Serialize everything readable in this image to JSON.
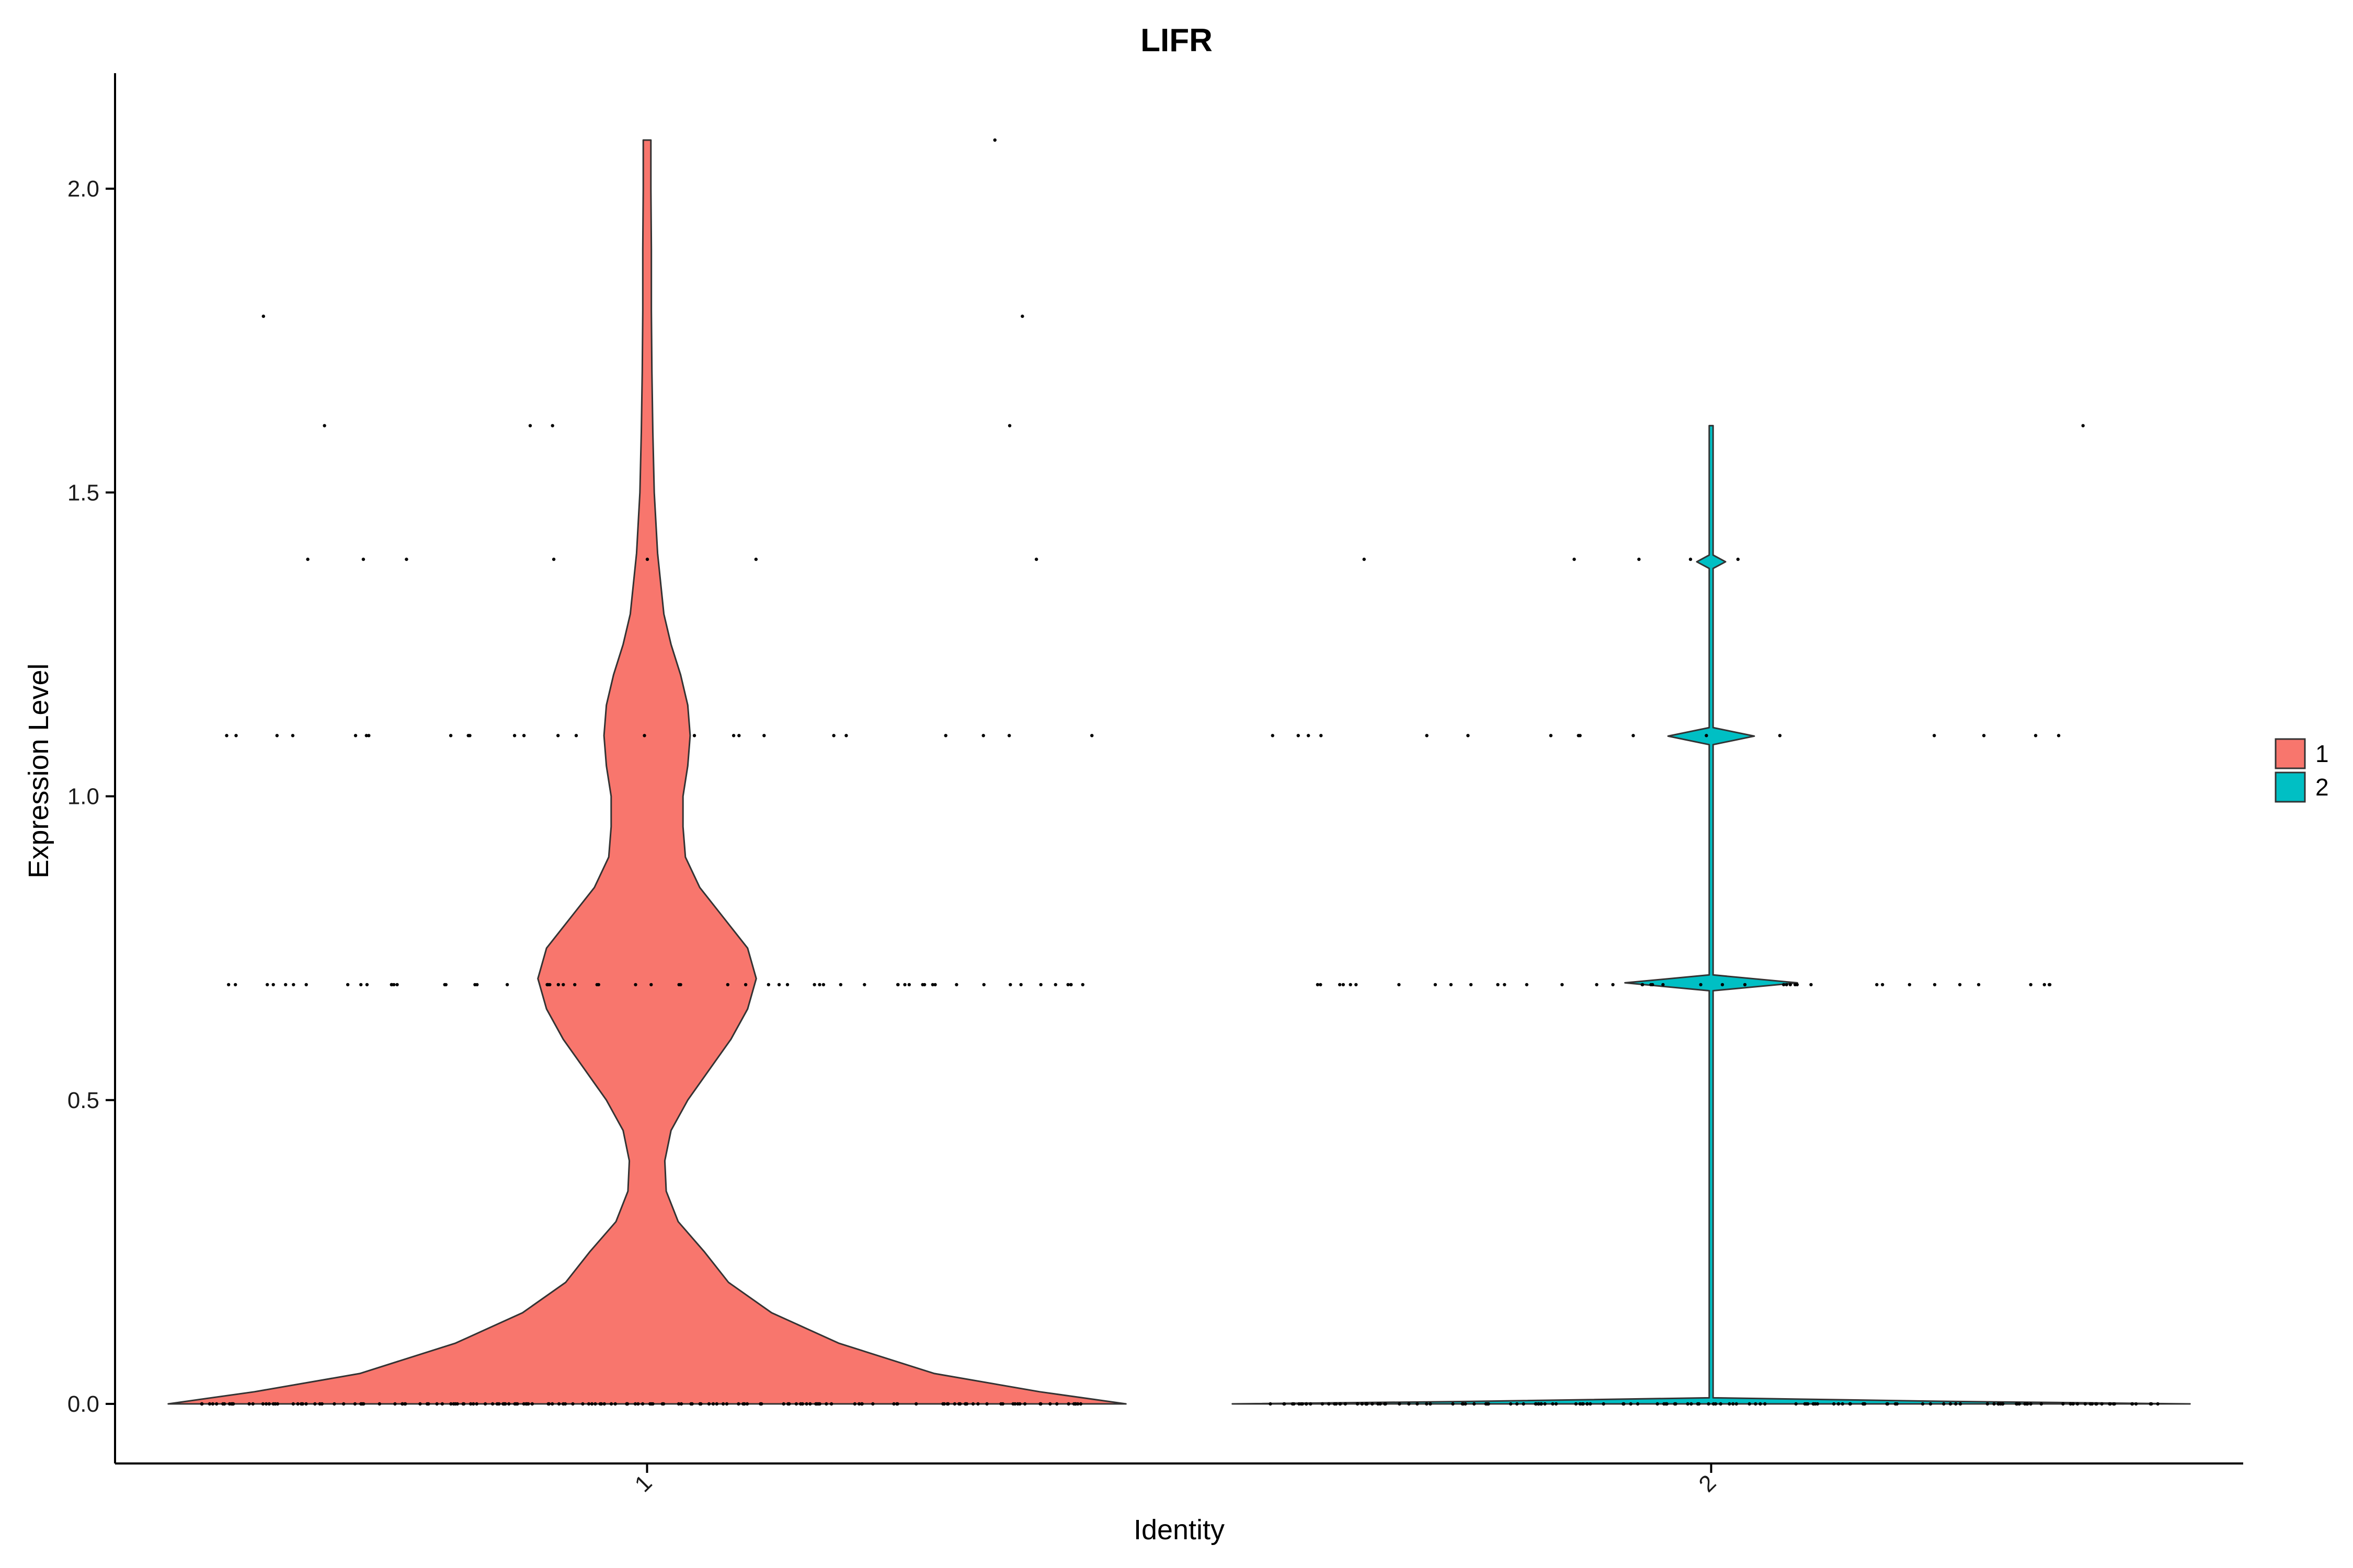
{
  "chart_data": {
    "type": "violin",
    "title": "LIFR",
    "xlabel": "Identity",
    "ylabel": "Expression Level",
    "categories": [
      "1",
      "2"
    ],
    "ylim": [
      -0.1,
      2.18
    ],
    "yticks": [
      0.0,
      0.5,
      1.0,
      1.5,
      2.0
    ],
    "ytick_labels": [
      "0.0",
      "0.5",
      "1.0",
      "1.5",
      "2.0"
    ],
    "legend": {
      "position": "right",
      "entries": [
        {
          "label": "1",
          "color": "#F8766D"
        },
        {
          "label": "2",
          "color": "#00BFC4"
        }
      ]
    },
    "series": [
      {
        "category": "1",
        "color": "#F8766D",
        "max_value": 2.08,
        "density_profile": [
          [
            0.0,
            1.0
          ],
          [
            0.02,
            0.82
          ],
          [
            0.05,
            0.6
          ],
          [
            0.1,
            0.4
          ],
          [
            0.15,
            0.26
          ],
          [
            0.2,
            0.17
          ],
          [
            0.25,
            0.12
          ],
          [
            0.3,
            0.065
          ],
          [
            0.35,
            0.04
          ],
          [
            0.4,
            0.037
          ],
          [
            0.45,
            0.05
          ],
          [
            0.5,
            0.085
          ],
          [
            0.55,
            0.13
          ],
          [
            0.6,
            0.175
          ],
          [
            0.65,
            0.21
          ],
          [
            0.7,
            0.228
          ],
          [
            0.75,
            0.21
          ],
          [
            0.8,
            0.16
          ],
          [
            0.85,
            0.11
          ],
          [
            0.9,
            0.08
          ],
          [
            0.95,
            0.075
          ],
          [
            1.0,
            0.075
          ],
          [
            1.05,
            0.085
          ],
          [
            1.1,
            0.09
          ],
          [
            1.15,
            0.085
          ],
          [
            1.2,
            0.07
          ],
          [
            1.25,
            0.05
          ],
          [
            1.3,
            0.035
          ],
          [
            1.4,
            0.022
          ],
          [
            1.5,
            0.015
          ],
          [
            1.6,
            0.012
          ],
          [
            1.7,
            0.01
          ],
          [
            1.8,
            0.009
          ],
          [
            1.9,
            0.009
          ],
          [
            2.0,
            0.008
          ],
          [
            2.08,
            0.008
          ]
        ],
        "points": [
          {
            "y": 2.08,
            "n": 1
          },
          {
            "y": 1.79,
            "n": 2
          },
          {
            "y": 1.61,
            "n": 4
          },
          {
            "y": 1.39,
            "n": 7
          },
          {
            "y": 1.1,
            "n": 25
          },
          {
            "y": 0.69,
            "n": 60
          },
          {
            "y": 0.0,
            "n": 170
          }
        ]
      },
      {
        "category": "2",
        "color": "#00BFC4",
        "max_value": 1.61,
        "density_profile": [
          [
            0.0,
            1.0
          ],
          [
            0.004,
            0.5
          ],
          [
            0.01,
            0.004
          ],
          [
            0.68,
            0.004
          ],
          [
            0.693,
            0.18
          ],
          [
            0.706,
            0.004
          ],
          [
            1.085,
            0.004
          ],
          [
            1.099,
            0.09
          ],
          [
            1.113,
            0.004
          ],
          [
            1.375,
            0.004
          ],
          [
            1.386,
            0.03
          ],
          [
            1.397,
            0.004
          ],
          [
            1.61,
            0.004
          ]
        ],
        "points": [
          {
            "y": 1.61,
            "n": 1
          },
          {
            "y": 1.39,
            "n": 5
          },
          {
            "y": 1.1,
            "n": 16
          },
          {
            "y": 0.69,
            "n": 40
          },
          {
            "y": 0.0,
            "n": 150
          }
        ]
      }
    ]
  }
}
